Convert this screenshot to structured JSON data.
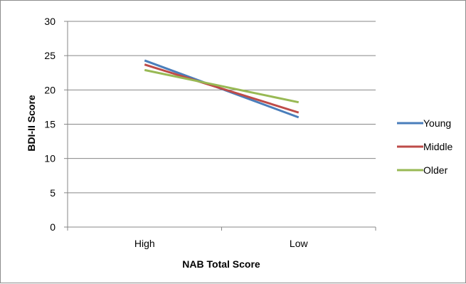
{
  "chart_data": {
    "type": "line",
    "title": "",
    "xlabel": "NAB Total Score",
    "ylabel": "BDI-II Score",
    "categories": [
      "High",
      "Low"
    ],
    "ylim": [
      0,
      30
    ],
    "yticks": [
      0,
      5,
      10,
      15,
      20,
      25,
      30
    ],
    "grid": true,
    "legend_position": "right",
    "series": [
      {
        "name": "Young",
        "color": "#4a7ebb",
        "values": [
          24.3,
          16.0
        ]
      },
      {
        "name": "Middle",
        "color": "#be4b48",
        "values": [
          23.7,
          16.7
        ]
      },
      {
        "name": "Older",
        "color": "#98b954",
        "values": [
          22.9,
          18.2
        ]
      }
    ]
  }
}
